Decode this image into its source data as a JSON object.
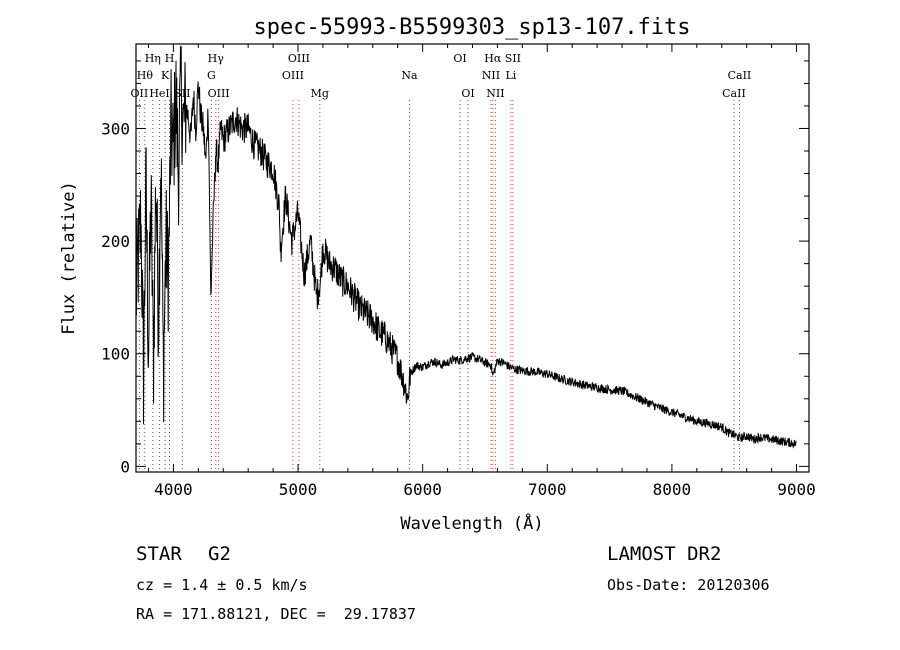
{
  "chart_data": {
    "type": "line",
    "title": "spec-55993-B5599303_sp13-107.fits",
    "xlabel": "Wavelength (Å)",
    "ylabel": "Flux (relative)",
    "xlim": [
      3700,
      9100
    ],
    "ylim": [
      -5,
      375
    ],
    "xticks": [
      4000,
      5000,
      6000,
      7000,
      8000,
      9000
    ],
    "yticks": [
      0,
      100,
      200,
      300
    ],
    "grid": false,
    "line_color": "#000000",
    "series": [
      {
        "x": [
          3700,
          3740,
          3760,
          3780,
          3800,
          3820,
          3840,
          3860,
          3880,
          3900,
          3920,
          3940,
          3960,
          3980,
          4000,
          4020,
          4040,
          4060,
          4080,
          4100,
          4120,
          4140,
          4160,
          4180,
          4200,
          4220,
          4240,
          4260,
          4280,
          4300,
          4320,
          4340,
          4360,
          4380,
          4400,
          4450,
          4500,
          4550,
          4600,
          4650,
          4700,
          4750,
          4800,
          4850,
          4860,
          4900,
          4950,
          5000,
          5050,
          5100,
          5150,
          5180,
          5200,
          5250,
          5300,
          5350,
          5400,
          5450,
          5500,
          5550,
          5600,
          5650,
          5700,
          5750,
          5800,
          5850,
          5880,
          5900,
          5950,
          6000,
          6050,
          6100,
          6150,
          6200,
          6250,
          6300,
          6350,
          6400,
          6450,
          6500,
          6550,
          6563,
          6600,
          6650,
          6700,
          6750,
          6800,
          6900,
          7000,
          7100,
          7200,
          7300,
          7400,
          7500,
          7600,
          7700,
          7800,
          7900,
          8000,
          8100,
          8200,
          8300,
          8400,
          8450,
          8500,
          8542,
          8600,
          8662,
          8700,
          8800,
          8900,
          9000
        ],
        "values": [
          150,
          220,
          80,
          250,
          100,
          240,
          90,
          260,
          130,
          280,
          80,
          200,
          170,
          300,
          280,
          330,
          260,
          340,
          300,
          320,
          310,
          290,
          330,
          300,
          340,
          310,
          300,
          270,
          320,
          150,
          220,
          280,
          270,
          300,
          290,
          300,
          310,
          300,
          300,
          285,
          280,
          270,
          265,
          230,
          190,
          240,
          200,
          225,
          170,
          200,
          150,
          165,
          195,
          180,
          175,
          165,
          160,
          150,
          140,
          135,
          130,
          120,
          115,
          105,
          95,
          75,
          60,
          82,
          90,
          88,
          92,
          93,
          90,
          92,
          95,
          94,
          96,
          97,
          95,
          92,
          90,
          80,
          94,
          92,
          88,
          86,
          85,
          84,
          82,
          78,
          75,
          72,
          70,
          68,
          67,
          62,
          57,
          52,
          48,
          44,
          40,
          38,
          35,
          30,
          28,
          25,
          27,
          24,
          26,
          24,
          22,
          20
        ]
      }
    ],
    "spectral_lines": [
      {
        "label": "OII",
        "x": 3727,
        "row": 3
      },
      {
        "label": "Hθ",
        "x": 3771,
        "row": 2
      },
      {
        "label": "Hη",
        "x": 3835,
        "row": 1
      },
      {
        "label": "HeI",
        "x": 3889,
        "row": 3
      },
      {
        "label": "K",
        "x": 3934,
        "row": 2
      },
      {
        "label": "H",
        "x": 3969,
        "row": 1
      },
      {
        "label": "SII",
        "x": 4072,
        "row": 3
      },
      {
        "label": "Hγ",
        "x": 4340,
        "row": 1
      },
      {
        "label": "G",
        "x": 4305,
        "row": 2
      },
      {
        "label": "OIII",
        "x": 4363,
        "row": 3
      },
      {
        "label": "OIII",
        "x": 5007,
        "row": 1
      },
      {
        "label": "OIII",
        "x": 4959,
        "row": 2
      },
      {
        "label": "Mg",
        "x": 5175,
        "row": 3
      },
      {
        "label": "Na",
        "x": 5894,
        "row": 2
      },
      {
        "label": "OI",
        "x": 6300,
        "row": 1
      },
      {
        "label": "OI",
        "x": 6364,
        "row": 3
      },
      {
        "label": "Hα",
        "x": 6563,
        "row": 1
      },
      {
        "label": "SII",
        "x": 6724,
        "row": 1
      },
      {
        "label": "NII",
        "x": 6548,
        "row": 2
      },
      {
        "label": "Li",
        "x": 6708,
        "row": 2
      },
      {
        "label": "NII",
        "x": 6584,
        "row": 3
      },
      {
        "label": "CaII",
        "x": 8542,
        "row": 2
      },
      {
        "label": "CaII",
        "x": 8498,
        "row": 3
      }
    ]
  },
  "info": {
    "object_type": "STAR",
    "subclass": "G2",
    "survey": "LAMOST DR2",
    "cz": "cz = 1.4 ± 0.5 km/s",
    "obs_date": "Obs-Date: 20120306",
    "coords": "RA = 171.88121, DEC =  29.17837"
  }
}
